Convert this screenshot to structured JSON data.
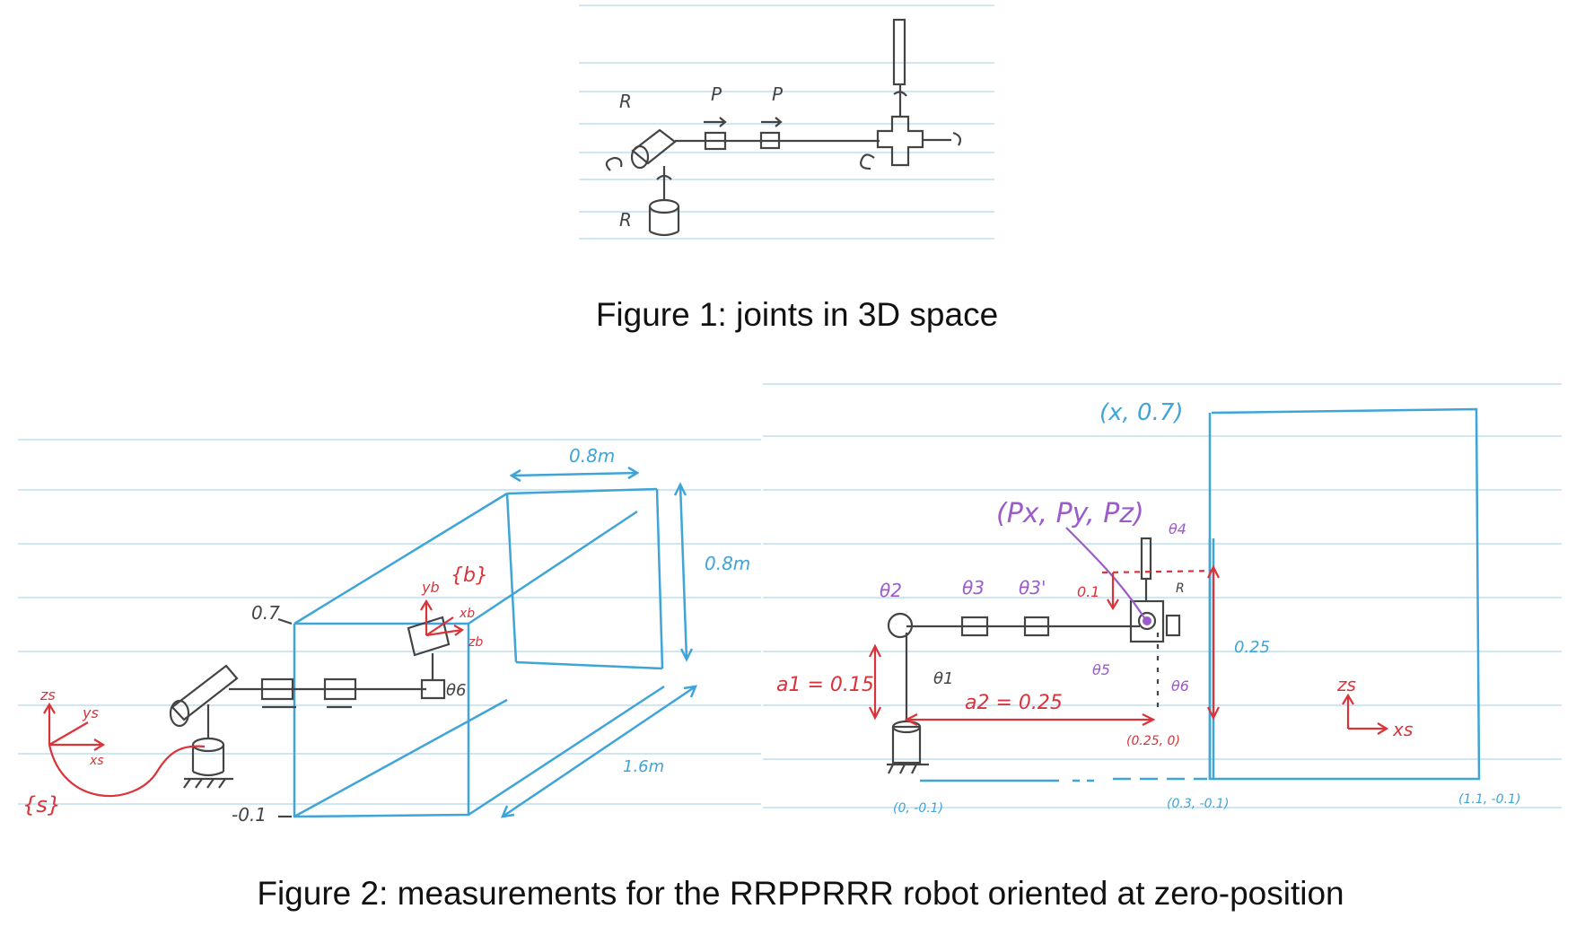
{
  "figure1": {
    "caption": "Figure 1: joints in 3D space",
    "joint_labels": [
      "R",
      "P",
      "P",
      "R"
    ]
  },
  "figure2": {
    "caption": "Figure 2: measurements for the RRPPRRR robot oriented at zero-position",
    "left": {
      "width_top": "0.8m",
      "height_right": "0.8m",
      "depth": "1.6m",
      "top_value": "0.7",
      "bottom_value": "-0.1",
      "body_frame": "{b}",
      "space_frame": "{s}",
      "axis_zs": "zs",
      "axis_ys": "ys",
      "axis_xs": "xs",
      "axis_yb": "yb",
      "axis_xb": "xb",
      "axis_zb": "zb",
      "theta6": "θ6"
    },
    "right": {
      "top_point": "(x, 0.7)",
      "end_point": "(Px, Py, Pz)",
      "theta2": "θ2",
      "theta3": "θ3",
      "theta3p": "θ3'",
      "theta4": "θ4",
      "theta5": "θ5",
      "theta6": "θ6",
      "theta1": "θ1",
      "offset": "0.1",
      "height": "0.25",
      "a1": "a1 = 0.15",
      "a2": "a2 = 0.25",
      "pt_025_0": "(0.25, 0)",
      "pt_0_m01": "(0, -0.1)",
      "pt_03_m01": "(0.3, -0.1)",
      "pt_11_m01": "(1.1, -0.1)",
      "axis_zs": "zs",
      "axis_xs": "xs",
      "joint_R": "R"
    }
  }
}
